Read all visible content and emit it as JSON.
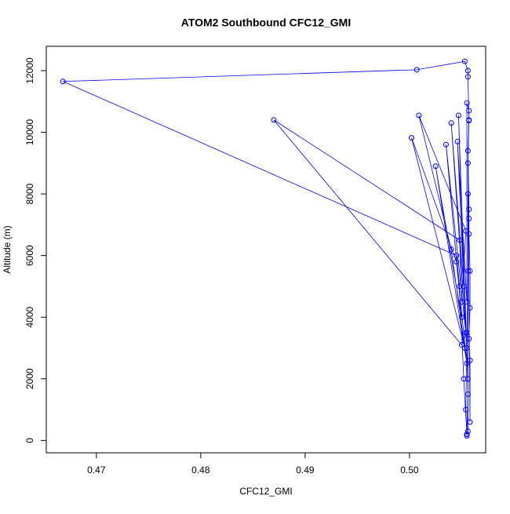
{
  "chart_data": {
    "type": "line",
    "title": "ATOM2 Southbound CFC12_GMI",
    "xlabel": "CFC12_GMI",
    "ylabel": "Altitude (m)",
    "xlim": [
      0.4652,
      0.5073
    ],
    "ylim": [
      -400,
      12790
    ],
    "xticks": [
      0.47,
      0.48,
      0.49,
      {
        "value": 0.5,
        "label": "0.50"
      }
    ],
    "yticks": [
      0,
      2000,
      4000,
      6000,
      8000,
      10000,
      12000
    ],
    "markers": "open-circle",
    "series": [
      {
        "name": "CFC12_GMI",
        "color": "#0000ff",
        "x": [
          0.5055,
          0.5056,
          0.5055,
          0.5056,
          0.5057,
          0.5056,
          0.5057,
          0.5056,
          0.5056,
          0.5053,
          0.5007,
          0.4668,
          0.5045,
          0.5048,
          0.5052,
          0.5055,
          0.5054,
          0.5055,
          0.505,
          0.487,
          0.5048,
          0.505,
          0.5054,
          0.5009,
          0.504,
          0.5053,
          0.5002,
          0.5045,
          0.5055,
          0.5025,
          0.505,
          0.5035,
          0.5054,
          0.504,
          0.5052,
          0.5047,
          0.5056,
          0.5046,
          0.5055,
          0.5055,
          0.5057,
          0.5057,
          0.5056,
          0.5058,
          0.5058,
          0.5057,
          0.5058,
          0.5058,
          0.5057,
          0.5057,
          0.5056,
          0.5056,
          0.5055
        ],
        "values": [
          200,
          1500,
          3000,
          5500,
          7500,
          9400,
          10400,
          11800,
          12000,
          12300,
          12030,
          11650,
          6000,
          5000,
          2000,
          200,
          1000,
          3500,
          3100,
          10400,
          6500,
          4500,
          6800,
          10550,
          6200,
          3000,
          9820,
          5800,
          2500,
          8900,
          4000,
          9600,
          3500,
          10300,
          5000,
          10550,
          2000,
          9700,
          4500,
          10950,
          10700,
          10380,
          9000,
          600,
          2600,
          3300,
          4300,
          5500,
          6700,
          7200,
          8000,
          300,
          150
        ]
      }
    ]
  }
}
